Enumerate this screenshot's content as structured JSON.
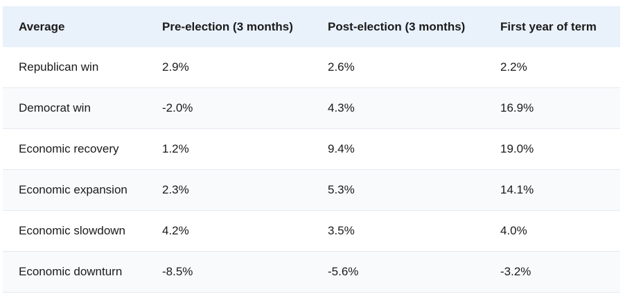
{
  "table": {
    "header": [
      "Average",
      "Pre-election (3 months)",
      "Post-election (3 months)",
      "First year of term"
    ],
    "rows": [
      [
        "Republican win",
        "2.9%",
        "2.6%",
        "2.2%"
      ],
      [
        "Democrat win",
        "-2.0%",
        "4.3%",
        "16.9%"
      ],
      [
        "Economic recovery",
        "1.2%",
        "9.4%",
        "19.0%"
      ],
      [
        "Economic expansion",
        "2.3%",
        "5.3%",
        "14.1%"
      ],
      [
        "Economic slowdown",
        "4.2%",
        "3.5%",
        "4.0%"
      ],
      [
        "Economic downturn",
        "-8.5%",
        "-5.6%",
        "-3.2%"
      ]
    ]
  }
}
